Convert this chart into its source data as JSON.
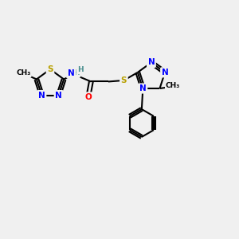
{
  "bg_color": "#f0f0f0",
  "bond_color": "#000000",
  "bond_width": 1.5,
  "atom_colors": {
    "N": "#0000ff",
    "S": "#b8a000",
    "O": "#ff0000",
    "H": "#4a8f8f",
    "C": "#000000"
  },
  "font_size_atom": 7.5,
  "font_size_small": 6.5,
  "title": ""
}
